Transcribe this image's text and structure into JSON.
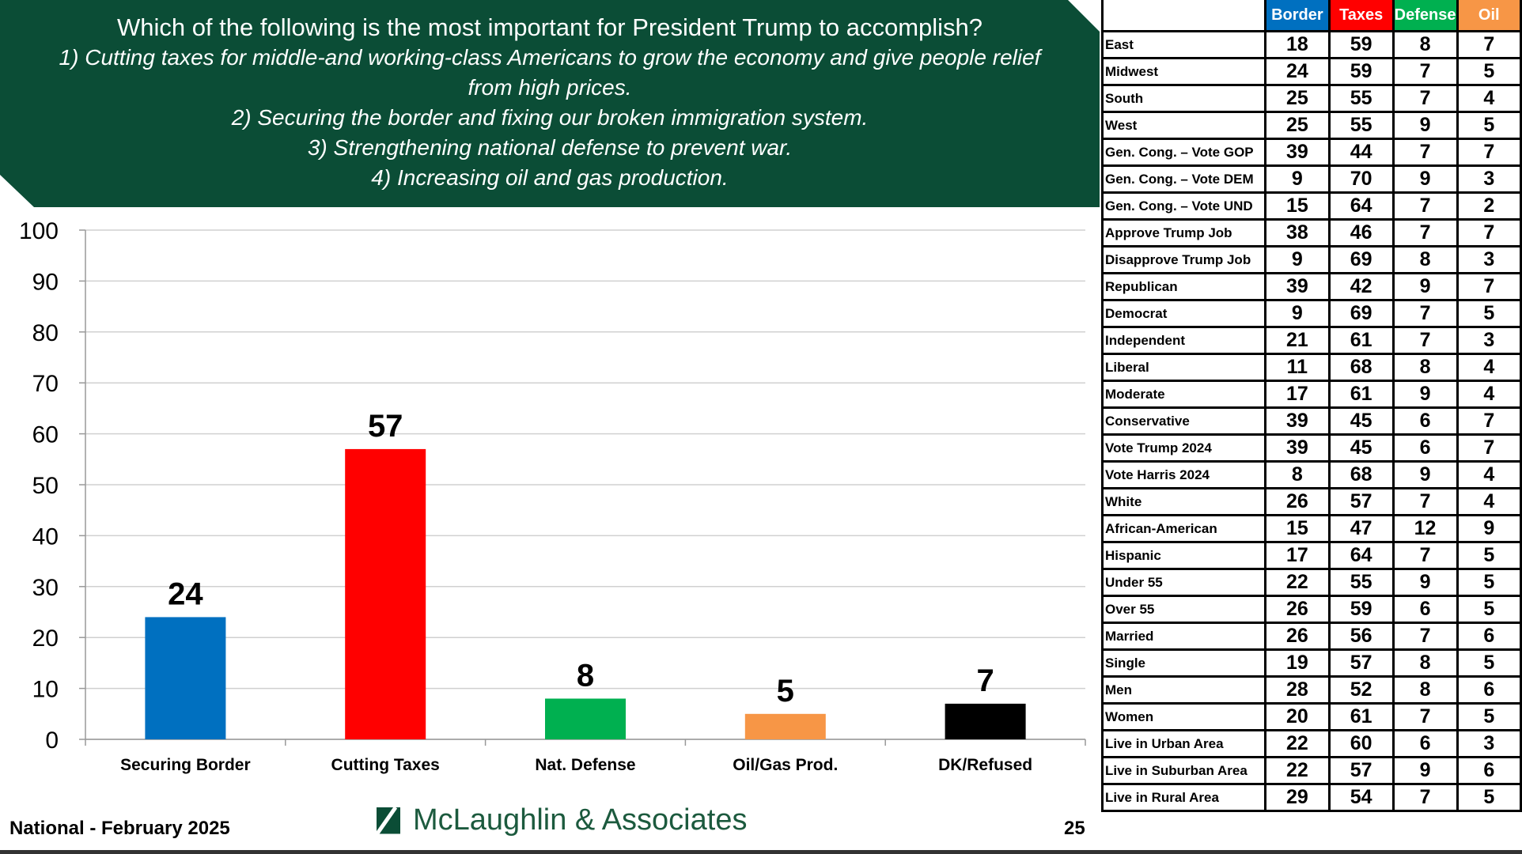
{
  "header": {
    "question": "Which of the following is the most important for President Trump to accomplish?",
    "options": [
      "1) Cutting taxes for middle-and working-class Americans to grow the economy and give people relief",
      "from high prices.",
      "2) Securing the border and fixing our broken immigration system.",
      "3) Strengthening national defense to prevent war.",
      "4) Increasing oil and gas production."
    ]
  },
  "chart_data": {
    "type": "bar",
    "title": "",
    "categories": [
      "Securing Border",
      "Cutting Taxes",
      "Nat. Defense",
      "Oil/Gas Prod.",
      "DK/Refused"
    ],
    "values": [
      24,
      57,
      8,
      5,
      7
    ],
    "colors": [
      "#0070c0",
      "#ff0000",
      "#00b050",
      "#f79646",
      "#000000"
    ],
    "ylim": [
      0,
      100
    ],
    "yticks": [
      0,
      10,
      20,
      30,
      40,
      50,
      60,
      70,
      80,
      90,
      100
    ],
    "grid": true,
    "xlabel": "",
    "ylabel": ""
  },
  "table": {
    "headers": [
      "Border",
      "Taxes",
      "Defense",
      "Oil"
    ],
    "header_colors": [
      "#0070c0",
      "#ff0000",
      "#00b050",
      "#f79646"
    ],
    "rows": [
      [
        "East",
        18,
        59,
        8,
        7
      ],
      [
        "Midwest",
        24,
        59,
        7,
        5
      ],
      [
        "South",
        25,
        55,
        7,
        4
      ],
      [
        "West",
        25,
        55,
        9,
        5
      ],
      [
        "Gen. Cong. – Vote GOP",
        39,
        44,
        7,
        7
      ],
      [
        "Gen. Cong. – Vote DEM",
        9,
        70,
        9,
        3
      ],
      [
        "Gen. Cong. – Vote UND",
        15,
        64,
        7,
        2
      ],
      [
        "Approve Trump Job",
        38,
        46,
        7,
        7
      ],
      [
        "Disapprove Trump Job",
        9,
        69,
        8,
        3
      ],
      [
        "Republican",
        39,
        42,
        9,
        7
      ],
      [
        "Democrat",
        9,
        69,
        7,
        5
      ],
      [
        "Independent",
        21,
        61,
        7,
        3
      ],
      [
        "Liberal",
        11,
        68,
        8,
        4
      ],
      [
        "Moderate",
        17,
        61,
        9,
        4
      ],
      [
        "Conservative",
        39,
        45,
        6,
        7
      ],
      [
        "Vote Trump 2024",
        39,
        45,
        6,
        7
      ],
      [
        "Vote Harris 2024",
        8,
        68,
        9,
        4
      ],
      [
        "White",
        26,
        57,
        7,
        4
      ],
      [
        "African-American",
        15,
        47,
        12,
        9
      ],
      [
        "Hispanic",
        17,
        64,
        7,
        5
      ],
      [
        "Under 55",
        22,
        55,
        9,
        5
      ],
      [
        "Over 55",
        26,
        59,
        6,
        5
      ],
      [
        "Married",
        26,
        56,
        7,
        6
      ],
      [
        "Single",
        19,
        57,
        8,
        5
      ],
      [
        "Men",
        28,
        52,
        8,
        6
      ],
      [
        "Women",
        20,
        61,
        7,
        5
      ],
      [
        "Live in Urban Area",
        22,
        60,
        6,
        3
      ],
      [
        "Live in Suburban Area",
        22,
        57,
        9,
        6
      ],
      [
        "Live in Rural Area",
        29,
        54,
        7,
        5
      ]
    ]
  },
  "footer": {
    "survey": "National - February 2025",
    "logo": "McLaughlin & Associates",
    "page": "25"
  }
}
